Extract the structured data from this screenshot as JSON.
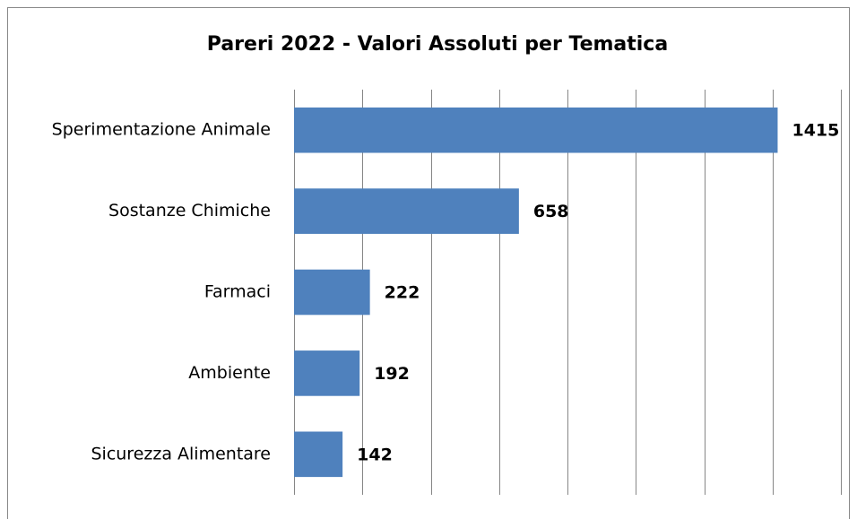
{
  "chart_data": {
    "type": "bar",
    "orientation": "horizontal",
    "title": "Pareri 2022 - Valori Assoluti per Tematica",
    "categories": [
      "Sperimentazione Animale",
      "Sostanze Chimiche",
      "Farmaci",
      "Ambiente",
      "Sicurezza Alimentare"
    ],
    "values": [
      1415,
      658,
      222,
      192,
      142
    ],
    "color": "#4f81bd",
    "xlim": [
      0,
      1600
    ],
    "xticks": [
      0,
      200,
      400,
      600,
      800,
      1000,
      1200,
      1400,
      1600
    ],
    "grid": true
  }
}
